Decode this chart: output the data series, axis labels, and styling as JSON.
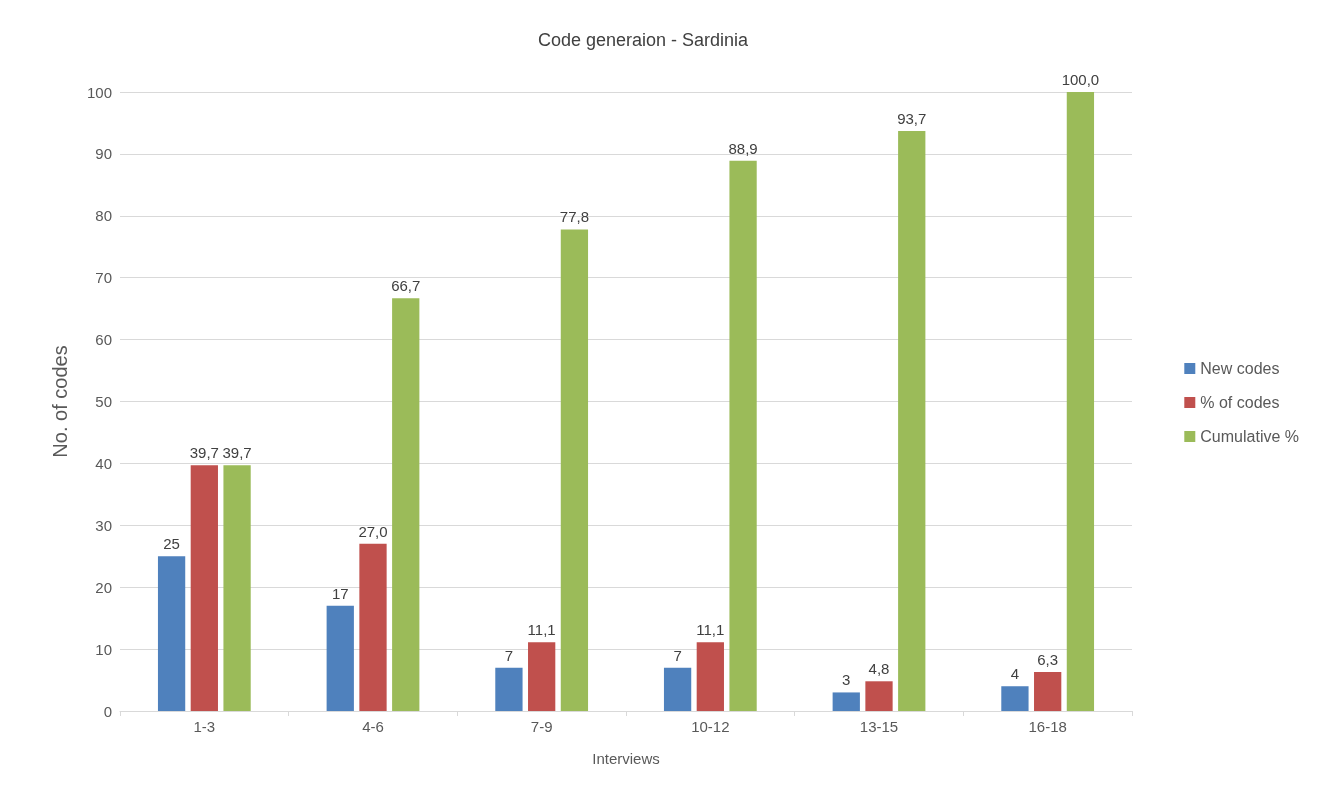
{
  "chart_data": {
    "type": "bar",
    "title": "Code generaion - Sardinia",
    "xlabel": "Interviews",
    "ylabel": "No. of codes",
    "categories": [
      "1-3",
      "4-6",
      "7-9",
      "10-12",
      "13-15",
      "16-18"
    ],
    "series": [
      {
        "name": "New codes",
        "color": "#4f81bd",
        "values": [
          25,
          17,
          7,
          7,
          3,
          4
        ],
        "value_labels": [
          "25",
          "17",
          "7",
          "7",
          "3",
          "4"
        ]
      },
      {
        "name": "% of codes",
        "color": "#c0504d",
        "values": [
          39.7,
          27.0,
          11.1,
          11.1,
          4.8,
          6.3
        ],
        "value_labels": [
          "39,7",
          "27,0",
          "11,1",
          "11,1",
          "4,8",
          "6,3"
        ]
      },
      {
        "name": "Cumulative %",
        "color": "#9bbb59",
        "values": [
          39.7,
          66.7,
          77.8,
          88.9,
          93.7,
          100.0
        ],
        "value_labels": [
          "39,7",
          "66,7",
          "77,8",
          "88,9",
          "93,7",
          "100,0"
        ]
      }
    ],
    "ylim": [
      0,
      100
    ],
    "yticks": [
      0,
      10,
      20,
      30,
      40,
      50,
      60,
      70,
      80,
      90,
      100
    ],
    "grid": "y",
    "legend": "right"
  }
}
